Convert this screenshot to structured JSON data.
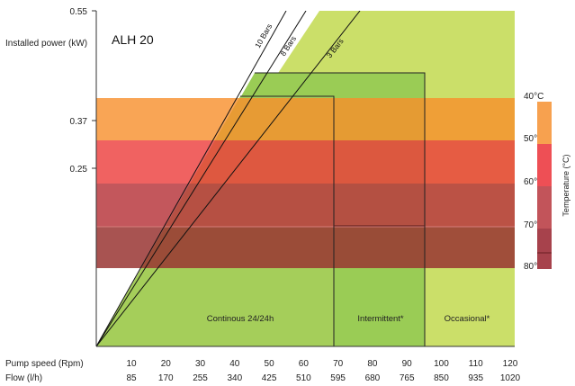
{
  "chart_data": {
    "type": "area",
    "title": "ALH 20",
    "ylabel": "Installed power (kW)",
    "y_ticks": [
      "0.55",
      "0.37",
      "0.25"
    ],
    "x_rows": [
      {
        "label": "Pump speed (Rpm)",
        "values": [
          "10",
          "20",
          "30",
          "40",
          "50",
          "60",
          "70",
          "80",
          "90",
          "100",
          "110",
          "120"
        ]
      },
      {
        "label": "Flow (l/h)",
        "values": [
          "85",
          "170",
          "255",
          "340",
          "425",
          "510",
          "595",
          "680",
          "765",
          "850",
          "935",
          "1020"
        ]
      }
    ],
    "xlim": [
      0,
      120
    ],
    "zones": [
      {
        "name": "Continous 24/24h",
        "x_end": 70,
        "color": "#a5ce5a"
      },
      {
        "name": "Intermittent*",
        "x_end": 96,
        "color": "#9acc55"
      },
      {
        "name": "Occasional*",
        "x_end": 120,
        "color": "#cbdf69"
      }
    ],
    "pressure_lines": [
      "10 Bars",
      "8 Bars",
      "3 Bars"
    ],
    "temperature_bands": [
      {
        "label": "40°C",
        "color": "#f7a14f"
      },
      {
        "label": "50°C",
        "color": "#ee4f3e"
      },
      {
        "label": "60°C",
        "color": "#b8454a"
      },
      {
        "label": "70°C",
        "color": "#9c3f3d"
      },
      {
        "label": "80°C",
        "color": "#9c3f3d"
      }
    ],
    "temperature_axis_label": "Temperature (°C)",
    "legend_colors": [
      "#f7a14f",
      "#ee4f3e",
      "#c2545a",
      "#a7424c"
    ]
  }
}
